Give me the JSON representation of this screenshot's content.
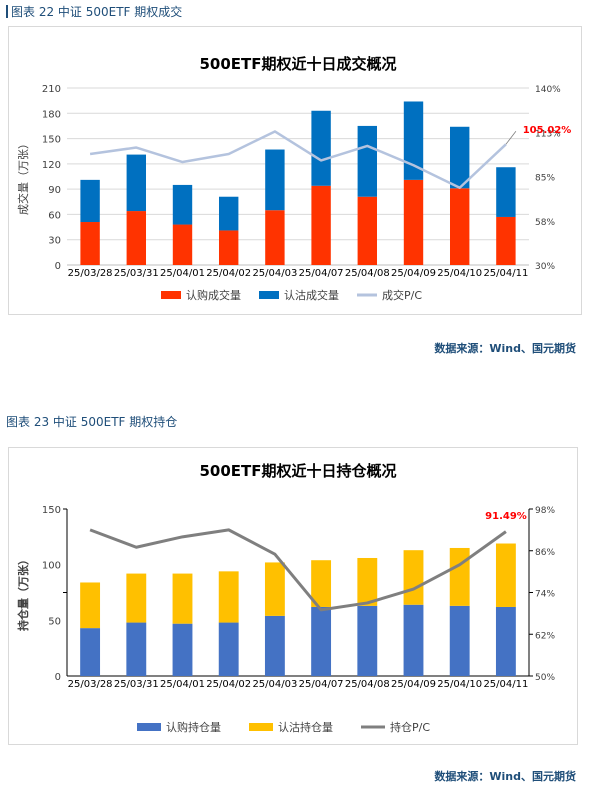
{
  "figures": [
    {
      "caption": "图表 22  中证 500ETF 期权成交",
      "source": "数据来源：Wind、国元期货",
      "colors": {
        "call": "#ff3300",
        "put": "#0070c0",
        "pc": "#b4c3de"
      },
      "legend": [
        "认购成交量",
        "认沽成交量",
        "成交P/C"
      ],
      "annotation": "105.02%"
    },
    {
      "caption": "图表 23  中证 500ETF 期权持仓",
      "source": "数据来源：Wind、国元期货",
      "colors": {
        "call": "#4472c4",
        "put": "#ffc000",
        "pc": "#7f7f7f"
      },
      "legend": [
        "认购持仓量",
        "认沽持仓量",
        "持仓P/C"
      ],
      "annotation": "91.49%"
    }
  ],
  "chart_data": [
    {
      "type": "bar",
      "title": "500ETF期权近十日成交概况",
      "ylabel": "成交量（万张）",
      "categories": [
        "25/03/28",
        "25/03/31",
        "25/04/01",
        "25/04/02",
        "25/04/03",
        "25/04/07",
        "25/04/08",
        "25/04/09",
        "25/04/10",
        "25/04/11"
      ],
      "y_ticks": [
        "0",
        "30",
        "60",
        "90",
        "120",
        "150",
        "180",
        "210"
      ],
      "ylim": [
        0,
        210
      ],
      "y2_ticks": [
        "30%",
        "58%",
        "85%",
        "113%",
        "140%"
      ],
      "y2lim": [
        30,
        140
      ],
      "stacked": true,
      "series": [
        {
          "name": "认购成交量",
          "values": [
            51,
            64,
            48,
            41,
            65,
            94,
            81,
            101,
            91,
            57
          ]
        },
        {
          "name": "认沽成交量",
          "values": [
            50,
            67,
            47,
            40,
            72,
            89,
            84,
            93,
            73,
            59
          ]
        },
        {
          "name": "成交P/C",
          "axis": "right",
          "line": true,
          "values": [
            99,
            103,
            94,
            99,
            113,
            95,
            104,
            92,
            78,
            105.02
          ]
        }
      ],
      "legend_position": "bottom",
      "grid": true
    },
    {
      "type": "bar",
      "title": "500ETF期权近十日持仓概况",
      "ylabel": "持仓量（万张）",
      "categories": [
        "25/03/28",
        "25/03/31",
        "25/04/01",
        "25/04/02",
        "25/04/03",
        "25/04/07",
        "25/04/08",
        "25/04/09",
        "25/04/10",
        "25/04/11"
      ],
      "y_ticks": [
        "0",
        "50",
        "100",
        "150"
      ],
      "ylim": [
        0,
        150
      ],
      "y2_ticks": [
        "50%",
        "62%",
        "74%",
        "86%",
        "98%"
      ],
      "y2lim": [
        50,
        98
      ],
      "stacked": true,
      "series": [
        {
          "name": "认购持仓量",
          "values": [
            43,
            48,
            47,
            48,
            54,
            62,
            63,
            64,
            63,
            62
          ]
        },
        {
          "name": "认沽持仓量",
          "values": [
            41,
            44,
            45,
            46,
            48,
            42,
            43,
            49,
            52,
            57
          ]
        },
        {
          "name": "持仓P/C",
          "axis": "right",
          "line": true,
          "values": [
            92,
            87,
            90,
            92,
            85,
            69,
            71,
            75,
            82,
            91.49
          ]
        }
      ],
      "legend_position": "bottom",
      "grid": true
    }
  ]
}
